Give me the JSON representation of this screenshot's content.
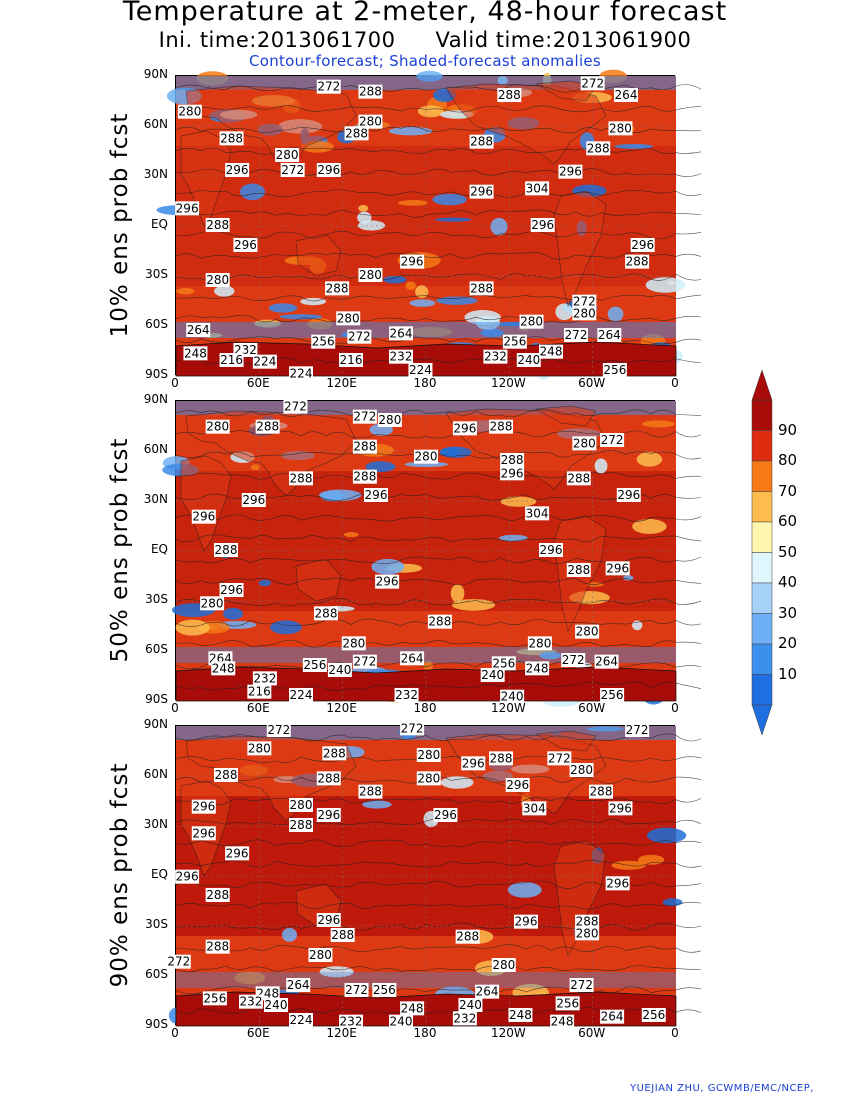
{
  "title": "Temperature at 2-meter, 48-hour forecast",
  "subtitle": {
    "init": "Ini. time:2013061700",
    "valid": "Valid time:2013061900"
  },
  "legend_note": "Contour-forecast; Shaded-forecast anomalies",
  "credit": "YUEJIAN ZHU, GCWMB/EMC/NCEP,",
  "lat_ticks": [
    "90N",
    "60N",
    "30N",
    "EQ",
    "30S",
    "60S",
    "90S"
  ],
  "lon_ticks": [
    "0",
    "60E",
    "120E",
    "180",
    "120W",
    "60W",
    "0"
  ],
  "colorbar": {
    "levels": [
      "10",
      "20",
      "30",
      "40",
      "50",
      "60",
      "70",
      "80",
      "90"
    ],
    "colors": [
      "#1f6fe0",
      "#3d8fee",
      "#6eb0f5",
      "#a6d2fa",
      "#dff6fc",
      "#fff6b0",
      "#fdbd4e",
      "#f57a16",
      "#dd2c10",
      "#a80c08"
    ]
  },
  "colors": {
    "ocean_warm": "#b91408",
    "ocean_mid": "#dd3a14",
    "cool": "#3b8ae8",
    "cold": "#1e6fd8",
    "pale": "#cfeefc",
    "title_blue": "#1a3fd6"
  },
  "panels": [
    {
      "label": "10% ens prob fcst",
      "contours": [
        {
          "text": "272",
          "lon": 55,
          "lat": 83
        },
        {
          "text": "288",
          "lon": 70,
          "lat": 80
        },
        {
          "text": "280",
          "lon": 5,
          "lat": 68
        },
        {
          "text": "288",
          "lon": 20,
          "lat": 52
        },
        {
          "text": "280",
          "lon": 40,
          "lat": 42
        },
        {
          "text": "296",
          "lon": 22,
          "lat": 33
        },
        {
          "text": "272",
          "lon": 42,
          "lat": 33
        },
        {
          "text": "296",
          "lon": 55,
          "lat": 33
        },
        {
          "text": "288",
          "lon": 65,
          "lat": 55
        },
        {
          "text": "280",
          "lon": 70,
          "lat": 62
        },
        {
          "text": "288",
          "lon": 120,
          "lat": 78
        },
        {
          "text": "288",
          "lon": 110,
          "lat": 50
        },
        {
          "text": "296",
          "lon": 110,
          "lat": 20
        },
        {
          "text": "304",
          "lon": 130,
          "lat": 22
        },
        {
          "text": "296",
          "lon": 142,
          "lat": 32
        },
        {
          "text": "288",
          "lon": 152,
          "lat": 46
        },
        {
          "text": "272",
          "lon": 150,
          "lat": 85
        },
        {
          "text": "264",
          "lon": 162,
          "lat": 78
        },
        {
          "text": "280",
          "lon": 160,
          "lat": 58
        },
        {
          "text": "296",
          "lon": 4,
          "lat": 10
        },
        {
          "text": "288",
          "lon": 15,
          "lat": 0
        },
        {
          "text": "296",
          "lon": 25,
          "lat": -12
        },
        {
          "text": "296",
          "lon": 85,
          "lat": -22
        },
        {
          "text": "296",
          "lon": 132,
          "lat": 0
        },
        {
          "text": "296",
          "lon": 168,
          "lat": -12
        },
        {
          "text": "288",
          "lon": 166,
          "lat": -22
        },
        {
          "text": "280",
          "lon": 15,
          "lat": -33
        },
        {
          "text": "280",
          "lon": 70,
          "lat": -30
        },
        {
          "text": "288",
          "lon": 58,
          "lat": -38
        },
        {
          "text": "288",
          "lon": 110,
          "lat": -38
        },
        {
          "text": "280",
          "lon": 62,
          "lat": -56
        },
        {
          "text": "280",
          "lon": 128,
          "lat": -58
        },
        {
          "text": "272",
          "lon": 147,
          "lat": -46
        },
        {
          "text": "280",
          "lon": 147,
          "lat": -53
        },
        {
          "text": "272",
          "lon": 144,
          "lat": -66
        },
        {
          "text": "264",
          "lon": 156,
          "lat": -66
        },
        {
          "text": "264",
          "lon": 8,
          "lat": -63
        },
        {
          "text": "248",
          "lon": 7,
          "lat": -77
        },
        {
          "text": "232",
          "lon": 25,
          "lat": -75
        },
        {
          "text": "216",
          "lon": 20,
          "lat": -81
        },
        {
          "text": "224",
          "lon": 32,
          "lat": -82
        },
        {
          "text": "256",
          "lon": 53,
          "lat": -70
        },
        {
          "text": "272",
          "lon": 66,
          "lat": -67
        },
        {
          "text": "264",
          "lon": 81,
          "lat": -65
        },
        {
          "text": "216",
          "lon": 63,
          "lat": -81
        },
        {
          "text": "232",
          "lon": 81,
          "lat": -79
        },
        {
          "text": "224",
          "lon": 88,
          "lat": -87
        },
        {
          "text": "224",
          "lon": 45,
          "lat": -89
        },
        {
          "text": "256",
          "lon": 122,
          "lat": -70
        },
        {
          "text": "232",
          "lon": 115,
          "lat": -79
        },
        {
          "text": "240",
          "lon": 127,
          "lat": -81
        },
        {
          "text": "248",
          "lon": 135,
          "lat": -76
        },
        {
          "text": "256",
          "lon": 158,
          "lat": -87
        }
      ]
    },
    {
      "label": "50% ens prob fcst",
      "contours": [
        {
          "text": "272",
          "lon": 43,
          "lat": 86
        },
        {
          "text": "280",
          "lon": 15,
          "lat": 74
        },
        {
          "text": "288",
          "lon": 33,
          "lat": 74
        },
        {
          "text": "272",
          "lon": 68,
          "lat": 80
        },
        {
          "text": "280",
          "lon": 77,
          "lat": 78
        },
        {
          "text": "288",
          "lon": 68,
          "lat": 62
        },
        {
          "text": "288",
          "lon": 45,
          "lat": 43
        },
        {
          "text": "288",
          "lon": 68,
          "lat": 44
        },
        {
          "text": "296",
          "lon": 72,
          "lat": 33
        },
        {
          "text": "280",
          "lon": 90,
          "lat": 56
        },
        {
          "text": "296",
          "lon": 104,
          "lat": 73
        },
        {
          "text": "288",
          "lon": 117,
          "lat": 74
        },
        {
          "text": "288",
          "lon": 121,
          "lat": 54
        },
        {
          "text": "296",
          "lon": 121,
          "lat": 46
        },
        {
          "text": "304",
          "lon": 130,
          "lat": 22
        },
        {
          "text": "280",
          "lon": 147,
          "lat": 64
        },
        {
          "text": "272",
          "lon": 157,
          "lat": 66
        },
        {
          "text": "288",
          "lon": 145,
          "lat": 43
        },
        {
          "text": "296",
          "lon": 163,
          "lat": 33
        },
        {
          "text": "296",
          "lon": 10,
          "lat": 20
        },
        {
          "text": "296",
          "lon": 28,
          "lat": 30
        },
        {
          "text": "288",
          "lon": 18,
          "lat": 0
        },
        {
          "text": "296",
          "lon": 20,
          "lat": -24
        },
        {
          "text": "280",
          "lon": 13,
          "lat": -32
        },
        {
          "text": "296",
          "lon": 76,
          "lat": -19
        },
        {
          "text": "288",
          "lon": 54,
          "lat": -38
        },
        {
          "text": "288",
          "lon": 95,
          "lat": -43
        },
        {
          "text": "280",
          "lon": 64,
          "lat": -56
        },
        {
          "text": "296",
          "lon": 135,
          "lat": 0
        },
        {
          "text": "288",
          "lon": 145,
          "lat": -12
        },
        {
          "text": "296",
          "lon": 159,
          "lat": -11
        },
        {
          "text": "280",
          "lon": 131,
          "lat": -56
        },
        {
          "text": "280",
          "lon": 148,
          "lat": -49
        },
        {
          "text": "264",
          "lon": 16,
          "lat": -65
        },
        {
          "text": "248",
          "lon": 17,
          "lat": -71
        },
        {
          "text": "232",
          "lon": 32,
          "lat": -77
        },
        {
          "text": "216",
          "lon": 30,
          "lat": -85
        },
        {
          "text": "224",
          "lon": 45,
          "lat": -87
        },
        {
          "text": "256",
          "lon": 50,
          "lat": -69
        },
        {
          "text": "240",
          "lon": 59,
          "lat": -72
        },
        {
          "text": "272",
          "lon": 68,
          "lat": -67
        },
        {
          "text": "264",
          "lon": 85,
          "lat": -65
        },
        {
          "text": "232",
          "lon": 83,
          "lat": -87
        },
        {
          "text": "256",
          "lon": 118,
          "lat": -68
        },
        {
          "text": "240",
          "lon": 114,
          "lat": -75
        },
        {
          "text": "248",
          "lon": 130,
          "lat": -71
        },
        {
          "text": "240",
          "lon": 121,
          "lat": -88
        },
        {
          "text": "272",
          "lon": 143,
          "lat": -66
        },
        {
          "text": "264",
          "lon": 155,
          "lat": -67
        },
        {
          "text": "256",
          "lon": 157,
          "lat": -87
        }
      ]
    },
    {
      "label": "90% ens prob fcst",
      "contours": [
        {
          "text": "272",
          "lon": 37,
          "lat": 87
        },
        {
          "text": "272",
          "lon": 85,
          "lat": 88
        },
        {
          "text": "272",
          "lon": 166,
          "lat": 87
        },
        {
          "text": "280",
          "lon": 30,
          "lat": 76
        },
        {
          "text": "288",
          "lon": 57,
          "lat": 73
        },
        {
          "text": "288",
          "lon": 18,
          "lat": 60
        },
        {
          "text": "288",
          "lon": 55,
          "lat": 58
        },
        {
          "text": "288",
          "lon": 70,
          "lat": 50
        },
        {
          "text": "280",
          "lon": 45,
          "lat": 42
        },
        {
          "text": "296",
          "lon": 55,
          "lat": 36
        },
        {
          "text": "288",
          "lon": 45,
          "lat": 30
        },
        {
          "text": "296",
          "lon": 10,
          "lat": 41
        },
        {
          "text": "296",
          "lon": 10,
          "lat": 25
        },
        {
          "text": "296",
          "lon": 22,
          "lat": 13
        },
        {
          "text": "296",
          "lon": 4,
          "lat": -1
        },
        {
          "text": "288",
          "lon": 15,
          "lat": -12
        },
        {
          "text": "280",
          "lon": 91,
          "lat": 72
        },
        {
          "text": "280",
          "lon": 91,
          "lat": 58
        },
        {
          "text": "296",
          "lon": 107,
          "lat": 67
        },
        {
          "text": "288",
          "lon": 117,
          "lat": 70
        },
        {
          "text": "296",
          "lon": 123,
          "lat": 54
        },
        {
          "text": "304",
          "lon": 129,
          "lat": 40
        },
        {
          "text": "296",
          "lon": 97,
          "lat": 36
        },
        {
          "text": "272",
          "lon": 138,
          "lat": 70
        },
        {
          "text": "280",
          "lon": 146,
          "lat": 63
        },
        {
          "text": "288",
          "lon": 153,
          "lat": 50
        },
        {
          "text": "296",
          "lon": 160,
          "lat": 40
        },
        {
          "text": "296",
          "lon": 159,
          "lat": -5
        },
        {
          "text": "288",
          "lon": 148,
          "lat": -28
        },
        {
          "text": "280",
          "lon": 148,
          "lat": -35
        },
        {
          "text": "296",
          "lon": 55,
          "lat": -27
        },
        {
          "text": "288",
          "lon": 60,
          "lat": -36
        },
        {
          "text": "296",
          "lon": 126,
          "lat": -28
        },
        {
          "text": "288",
          "lon": 105,
          "lat": -37
        },
        {
          "text": "280",
          "lon": 52,
          "lat": -48
        },
        {
          "text": "288",
          "lon": 15,
          "lat": -43
        },
        {
          "text": "280",
          "lon": 118,
          "lat": -54
        },
        {
          "text": "272",
          "lon": 1,
          "lat": -52
        },
        {
          "text": "256",
          "lon": 14,
          "lat": -74
        },
        {
          "text": "248",
          "lon": 33,
          "lat": -71
        },
        {
          "text": "232",
          "lon": 27,
          "lat": -76
        },
        {
          "text": "240",
          "lon": 36,
          "lat": -78
        },
        {
          "text": "264",
          "lon": 44,
          "lat": -66
        },
        {
          "text": "272",
          "lon": 65,
          "lat": -69
        },
        {
          "text": "256",
          "lon": 75,
          "lat": -69
        },
        {
          "text": "224",
          "lon": 45,
          "lat": -87
        },
        {
          "text": "232",
          "lon": 63,
          "lat": -88
        },
        {
          "text": "248",
          "lon": 85,
          "lat": -80
        },
        {
          "text": "240",
          "lon": 81,
          "lat": -88
        },
        {
          "text": "232",
          "lon": 104,
          "lat": -86
        },
        {
          "text": "240",
          "lon": 106,
          "lat": -78
        },
        {
          "text": "264",
          "lon": 112,
          "lat": -70
        },
        {
          "text": "248",
          "lon": 124,
          "lat": -84
        },
        {
          "text": "272",
          "lon": 146,
          "lat": -66
        },
        {
          "text": "256",
          "lon": 141,
          "lat": -77
        },
        {
          "text": "248",
          "lon": 139,
          "lat": -88
        },
        {
          "text": "264",
          "lon": 157,
          "lat": -85
        },
        {
          "text": "256",
          "lon": 172,
          "lat": -84
        }
      ]
    }
  ]
}
